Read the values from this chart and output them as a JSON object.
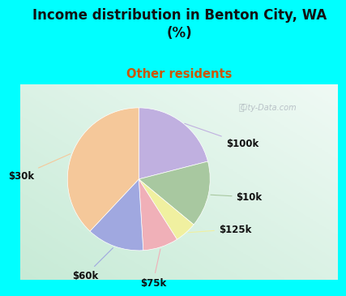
{
  "title": "Income distribution in Benton City, WA\n(%)",
  "subtitle": "Other residents",
  "title_color": "#111111",
  "subtitle_color": "#cc5500",
  "bg_color": "#00ffff",
  "slices": [
    {
      "label": "$100k",
      "value": 21,
      "color": "#c0b0e0"
    },
    {
      "label": "$10k",
      "value": 15,
      "color": "#a8c8a0"
    },
    {
      "label": "$125k",
      "value": 5,
      "color": "#f0f0a0"
    },
    {
      "label": "$75k",
      "value": 8,
      "color": "#f0b0b8"
    },
    {
      "label": "$60k",
      "value": 13,
      "color": "#a0a8e0"
    },
    {
      "label": "$30k",
      "value": 38,
      "color": "#f5c89a"
    }
  ],
  "start_angle": 90,
  "label_fontsize": 8.5,
  "title_fontsize": 12,
  "subtitle_fontsize": 10.5,
  "watermark": "City-Data.com"
}
